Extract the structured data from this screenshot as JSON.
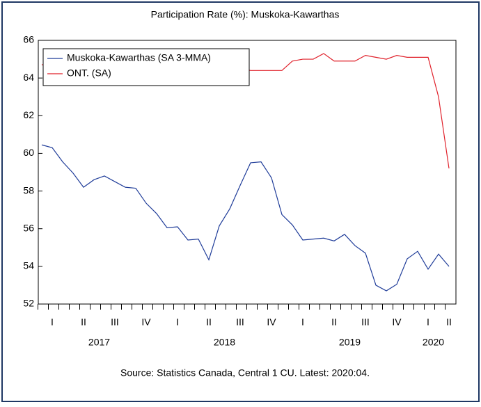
{
  "chart_data": {
    "type": "line",
    "title": "Participation Rate (%): Muskoka-Kawarthas",
    "source": "Source: Statistics Canada, Central 1 CU. Latest: 2020:04.",
    "categories": [
      null,
      "I",
      null,
      null,
      "II",
      null,
      null,
      "III",
      null,
      null,
      "IV",
      null,
      null,
      "I",
      null,
      null,
      "II",
      null,
      null,
      "III",
      null,
      null,
      "IV",
      null,
      null,
      "I",
      null,
      null,
      "II",
      null,
      null,
      "III",
      null,
      null,
      "IV",
      null,
      null,
      "I",
      null,
      "II"
    ],
    "years": [
      {
        "label": "2017",
        "start": 0,
        "end": 11
      },
      {
        "label": "2018",
        "start": 12,
        "end": 23
      },
      {
        "label": "2019",
        "start": 24,
        "end": 35
      },
      {
        "label": "2020",
        "start": 36,
        "end": 39
      }
    ],
    "series": [
      {
        "name": "Muskoka-Kawarthas (SA 3-MMA)",
        "color": "#1f3c99",
        "values": [
          60.45,
          60.3,
          59.55,
          58.95,
          58.2,
          58.6,
          58.8,
          58.5,
          58.2,
          58.15,
          57.35,
          56.8,
          56.05,
          56.1,
          55.4,
          55.45,
          54.35,
          56.15,
          57.05,
          58.3,
          59.5,
          59.55,
          58.7,
          56.75,
          56.2,
          55.4,
          55.45,
          55.5,
          55.35,
          55.7,
          55.1,
          54.7,
          53.0,
          52.7,
          53.05,
          54.4,
          54.8,
          53.85,
          54.65,
          54.0
        ]
      },
      {
        "name": "ONT. (SA)",
        "color": "#e0202a",
        "values": [
          64.7,
          64.8,
          64.7,
          64.7,
          64.6,
          64.7,
          64.8,
          64.6,
          64.5,
          64.6,
          64.5,
          64.6,
          64.6,
          64.5,
          64.6,
          64.5,
          64.6,
          64.6,
          64.6,
          64.5,
          64.4,
          64.4,
          64.4,
          64.4,
          64.9,
          65.0,
          65.0,
          65.3,
          64.9,
          64.9,
          64.9,
          65.2,
          65.1,
          65.0,
          65.2,
          65.1,
          65.1,
          65.1,
          63.0,
          59.2
        ]
      }
    ],
    "ylim": [
      52,
      66
    ],
    "yticks": [
      52,
      54,
      56,
      58,
      60,
      62,
      64,
      66
    ],
    "legend": "upper-left"
  }
}
